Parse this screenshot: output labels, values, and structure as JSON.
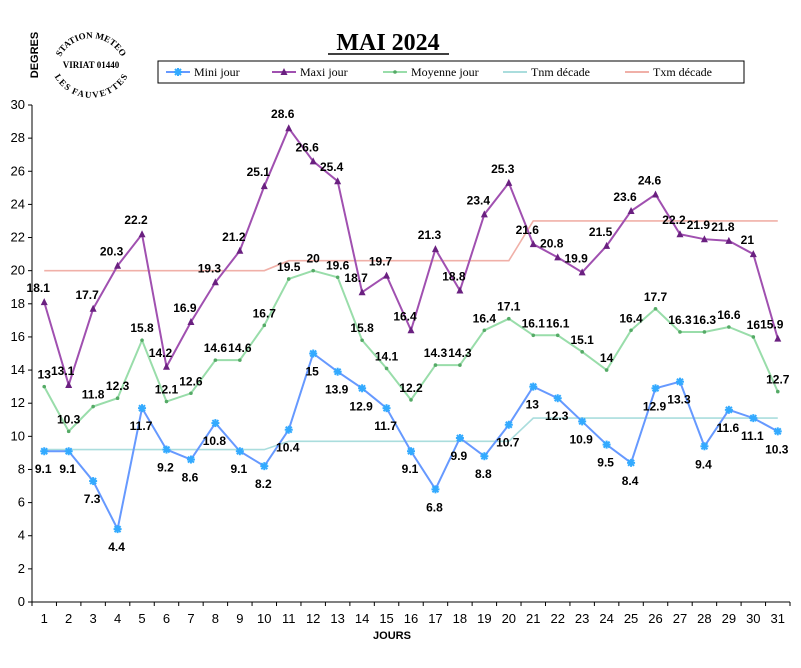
{
  "chart_data": {
    "type": "line",
    "title": "MAI 2024",
    "xlabel": "JOURS",
    "ylabel": "DEGRES",
    "ylim": [
      0,
      30
    ],
    "yticks": [
      0,
      2,
      4,
      6,
      8,
      10,
      12,
      14,
      16,
      18,
      20,
      22,
      24,
      26,
      28,
      30
    ],
    "x": [
      1,
      2,
      3,
      4,
      5,
      6,
      7,
      8,
      9,
      10,
      11,
      12,
      13,
      14,
      15,
      16,
      17,
      18,
      19,
      20,
      21,
      22,
      23,
      24,
      25,
      26,
      27,
      28,
      29,
      30,
      31
    ],
    "grid": false,
    "legend_position": "top",
    "stamp": {
      "top": "STATION METEO",
      "middle": "VIRIAT 01440",
      "bottom": "LES FAUVETTES"
    },
    "series": [
      {
        "name": "Mini jour",
        "color": "#6699ff",
        "marker_color": "#33aaff",
        "marker": "star",
        "labeled": true,
        "values": [
          9.1,
          9.1,
          7.3,
          4.4,
          11.7,
          9.2,
          8.6,
          10.8,
          9.1,
          8.2,
          10.4,
          15,
          13.9,
          12.9,
          11.7,
          9.1,
          6.8,
          9.9,
          8.8,
          10.7,
          13,
          12.3,
          10.9,
          9.5,
          8.4,
          12.9,
          13.3,
          9.4,
          11.6,
          11.1,
          10.3
        ]
      },
      {
        "name": "Maxi jour",
        "color": "#a050b0",
        "marker_color": "#6a2080",
        "marker": "triangle",
        "labeled": true,
        "values": [
          18.1,
          13.1,
          17.7,
          20.3,
          22.2,
          14.2,
          16.9,
          19.3,
          21.2,
          25.1,
          28.6,
          26.6,
          25.4,
          18.7,
          19.7,
          16.4,
          21.3,
          18.8,
          23.4,
          25.3,
          21.6,
          20.8,
          19.9,
          21.5,
          23.6,
          24.6,
          22.2,
          21.9,
          21.8,
          21,
          15.9
        ]
      },
      {
        "name": "Moyenne jour",
        "color": "#99ddaa",
        "marker_color": "#55aa66",
        "marker": "dot",
        "labeled": true,
        "values": [
          13,
          10.3,
          11.8,
          12.3,
          15.8,
          12.1,
          12.6,
          14.6,
          14.6,
          16.7,
          19.5,
          20,
          19.6,
          15.8,
          14.1,
          12.2,
          14.3,
          14.3,
          16.4,
          17.1,
          16.1,
          16.1,
          15.1,
          14,
          16.4,
          17.7,
          16.3,
          16.3,
          16.6,
          16,
          12.7
        ]
      },
      {
        "name": "Tnm décade",
        "color": "#aadddd",
        "marker": "none",
        "labeled": false,
        "values": [
          9.2,
          9.2,
          9.2,
          9.2,
          9.2,
          9.2,
          9.2,
          9.2,
          9.2,
          9.2,
          9.7,
          9.7,
          9.7,
          9.7,
          9.7,
          9.7,
          9.7,
          9.7,
          9.7,
          9.7,
          11.1,
          11.1,
          11.1,
          11.1,
          11.1,
          11.1,
          11.1,
          11.1,
          11.1,
          11.1,
          11.1
        ]
      },
      {
        "name": "Txm décade",
        "color": "#f0b0a8",
        "marker": "none",
        "labeled": false,
        "values": [
          20,
          20,
          20,
          20,
          20,
          20,
          20,
          20,
          20,
          20,
          20.6,
          20.6,
          20.6,
          20.6,
          20.6,
          20.6,
          20.6,
          20.6,
          20.6,
          20.6,
          23,
          23,
          23,
          23,
          23,
          23,
          23,
          23,
          23,
          23,
          23
        ]
      }
    ]
  }
}
